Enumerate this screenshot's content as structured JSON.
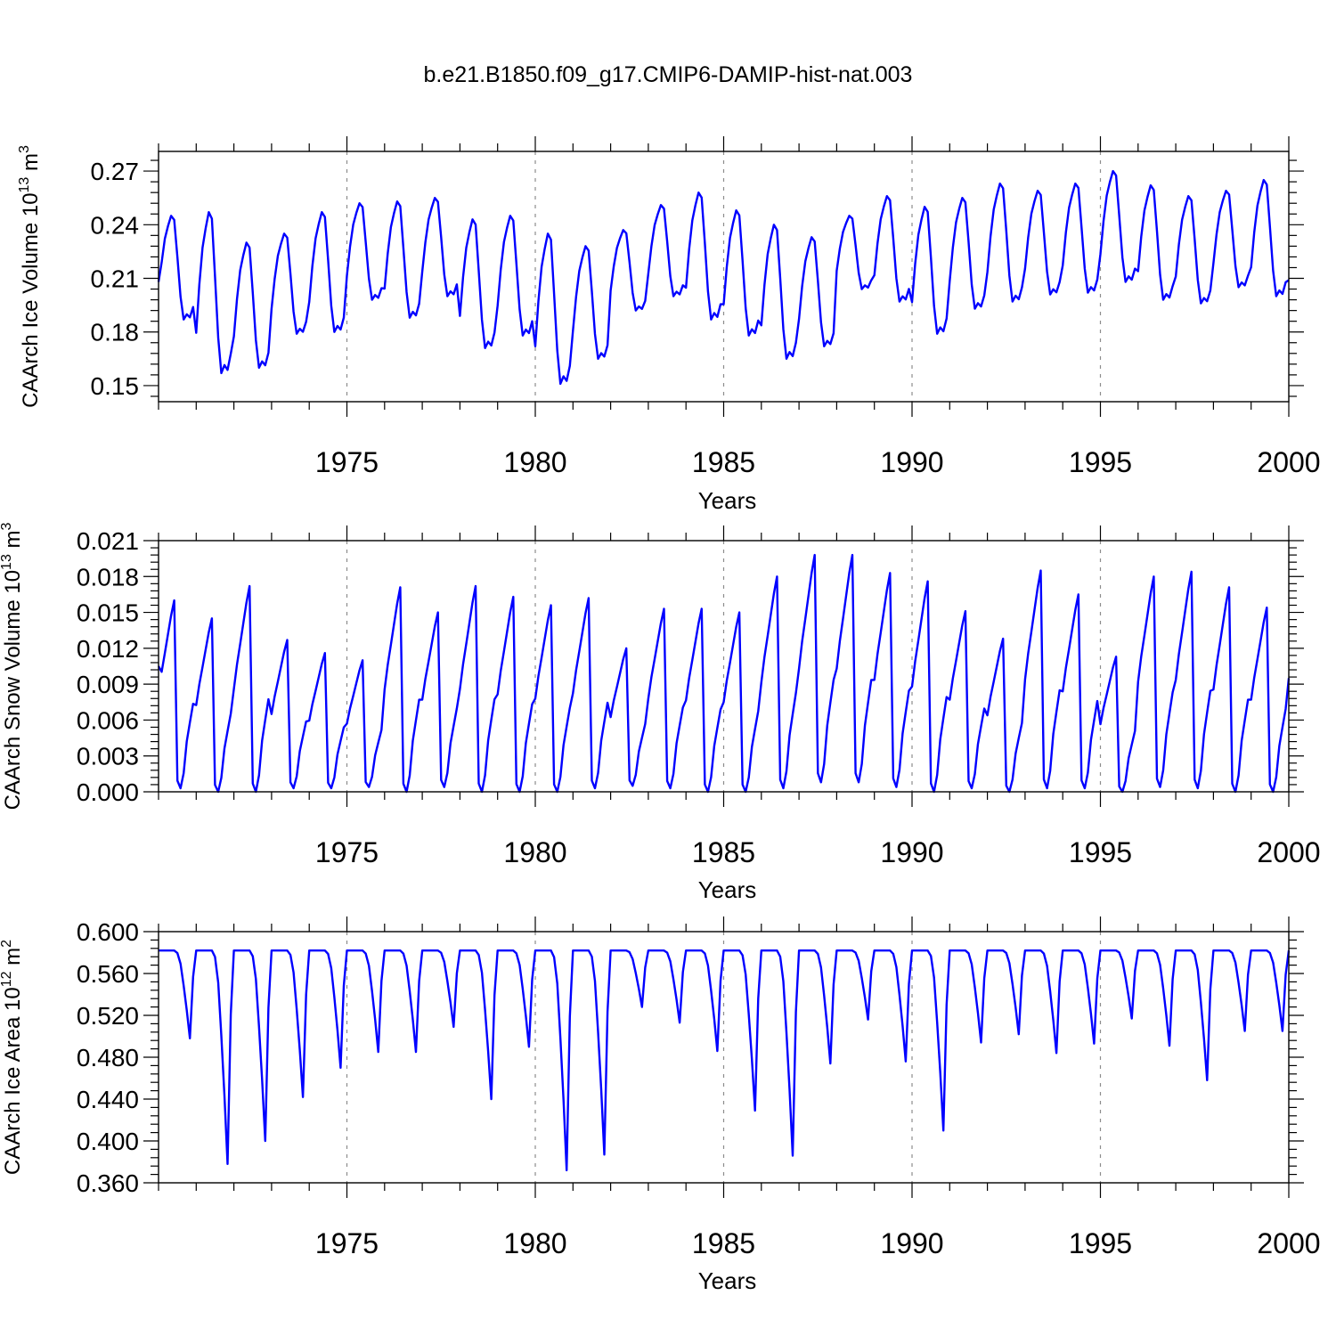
{
  "title": "b.e21.B1850.f09_g17.CMIP6-DAMIP-hist-nat.003",
  "colors": {
    "line": "#0000ff",
    "axis": "#000000",
    "grid": "#8c8c8c"
  },
  "chart_data": [
    {
      "type": "line",
      "ylabel_main": "CAArch Ice Volume 10",
      "ylabel_exp": "13",
      "ylabel_unit": " m",
      "ylabel_unit_exp": "3",
      "xlabel": "Years",
      "xlim": [
        1970,
        2000
      ],
      "ylim": [
        0.141,
        0.281
      ],
      "yticks": [
        0.15,
        0.18,
        0.21,
        0.24,
        0.27
      ],
      "ytick_labels": [
        "0.15",
        "0.18",
        "0.21",
        "0.24",
        "0.27"
      ],
      "xticks": [
        1975,
        1980,
        1985,
        1990,
        1995,
        2000
      ],
      "xtick_labels": [
        "1975",
        "1980",
        "1985",
        "1990",
        "1995",
        "2000"
      ],
      "grid_x": [
        1975,
        1980,
        1985,
        1990,
        1995
      ],
      "annual_max": [
        0.245,
        0.247,
        0.23,
        0.235,
        0.247,
        0.252,
        0.253,
        0.255,
        0.243,
        0.245,
        0.235,
        0.228,
        0.237,
        0.251,
        0.258,
        0.248,
        0.24,
        0.233,
        0.245,
        0.256,
        0.25,
        0.255,
        0.263,
        0.259,
        0.263,
        0.27,
        0.262,
        0.256,
        0.259,
        0.265
      ],
      "annual_min": [
        0.187,
        0.157,
        0.16,
        0.179,
        0.18,
        0.198,
        0.188,
        0.2,
        0.171,
        0.178,
        0.151,
        0.165,
        0.192,
        0.2,
        0.187,
        0.178,
        0.165,
        0.172,
        0.204,
        0.197,
        0.179,
        0.193,
        0.197,
        0.201,
        0.202,
        0.208,
        0.198,
        0.196,
        0.205,
        0.2
      ],
      "start_value": 0.208,
      "end_value": 0.209,
      "profile": [
        0.25,
        0.55,
        0.78,
        0.9,
        1.0,
        0.96,
        0.6,
        0.22,
        0.0,
        0.05,
        0.02,
        0.12
      ],
      "series": [
        {
          "name": "CAArch Ice Volume",
          "values": []
        }
      ]
    },
    {
      "type": "line",
      "ylabel_main": "CAArch Snow Volume 10",
      "ylabel_exp": "13",
      "ylabel_unit": " m",
      "ylabel_unit_exp": "3",
      "xlabel": "Years",
      "xlim": [
        1970,
        2000
      ],
      "ylim": [
        0.0,
        0.021
      ],
      "yticks": [
        0.0,
        0.003,
        0.006,
        0.009,
        0.012,
        0.015,
        0.018,
        0.021
      ],
      "ytick_labels": [
        "0.000",
        "0.003",
        "0.006",
        "0.009",
        "0.012",
        "0.015",
        "0.018",
        "0.021"
      ],
      "xticks": [
        1975,
        1980,
        1985,
        1990,
        1995,
        2000
      ],
      "xtick_labels": [
        "1975",
        "1980",
        "1985",
        "1990",
        "1995",
        "2000"
      ],
      "grid_x": [
        1975,
        1980,
        1985,
        1990,
        1995
      ],
      "annual_max": [
        0.016,
        0.0145,
        0.0172,
        0.0127,
        0.0116,
        0.011,
        0.0171,
        0.015,
        0.0172,
        0.0163,
        0.0156,
        0.0162,
        0.012,
        0.0153,
        0.0153,
        0.015,
        0.018,
        0.0198,
        0.0198,
        0.0183,
        0.0176,
        0.0151,
        0.0128,
        0.0185,
        0.0165,
        0.0113,
        0.018,
        0.0184,
        0.0171,
        0.0154
      ],
      "annual_min": [
        0.0003,
        0.0,
        0.0,
        0.0003,
        0.0003,
        0.0004,
        0.0,
        0.0004,
        0.0,
        0.0,
        0.0,
        0.0003,
        0.0005,
        0.0003,
        0.0,
        0.0,
        0.0003,
        0.0008,
        0.0008,
        0.0004,
        0.0,
        0.0003,
        0.0,
        0.0003,
        0.0003,
        0.0,
        0.0004,
        0.0003,
        0.0,
        0.0
      ],
      "start_value": 0.0105,
      "end_value": 0.0095,
      "profile": [
        0.5,
        0.62,
        0.72,
        0.82,
        0.92,
        1.0,
        0.04,
        0.0,
        0.08,
        0.25,
        0.35,
        0.45
      ],
      "series": [
        {
          "name": "CAArch Snow Volume",
          "values": []
        }
      ]
    },
    {
      "type": "line",
      "ylabel_main": "CAArch Ice Area 10",
      "ylabel_exp": "12",
      "ylabel_unit": " m",
      "ylabel_unit_exp": "2",
      "xlabel": "Years",
      "xlim": [
        1970,
        2000
      ],
      "ylim": [
        0.36,
        0.6
      ],
      "yticks": [
        0.36,
        0.4,
        0.44,
        0.48,
        0.52,
        0.56,
        0.6
      ],
      "ytick_labels": [
        "0.360",
        "0.400",
        "0.440",
        "0.480",
        "0.520",
        "0.560",
        "0.600"
      ],
      "xticks": [
        1975,
        1980,
        1985,
        1990,
        1995,
        2000
      ],
      "xtick_labels": [
        "1975",
        "1980",
        "1985",
        "1990",
        "1995",
        "2000"
      ],
      "grid_x": [
        1975,
        1980,
        1985,
        1990,
        1995
      ],
      "annual_max": [
        0.582,
        0.582,
        0.582,
        0.582,
        0.582,
        0.582,
        0.582,
        0.582,
        0.582,
        0.582,
        0.582,
        0.582,
        0.582,
        0.582,
        0.582,
        0.582,
        0.582,
        0.582,
        0.582,
        0.582,
        0.582,
        0.582,
        0.582,
        0.582,
        0.582,
        0.582,
        0.582,
        0.582,
        0.582,
        0.582
      ],
      "annual_min": [
        0.498,
        0.378,
        0.4,
        0.442,
        0.47,
        0.485,
        0.485,
        0.509,
        0.44,
        0.49,
        0.372,
        0.387,
        0.528,
        0.513,
        0.486,
        0.429,
        0.386,
        0.474,
        0.516,
        0.476,
        0.41,
        0.494,
        0.502,
        0.484,
        0.493,
        0.517,
        0.491,
        0.458,
        0.505,
        0.505
      ],
      "start_value": 0.582,
      "end_value": 0.582,
      "profile": [
        1.0,
        1.0,
        1.0,
        1.0,
        1.0,
        1.0,
        0.97,
        0.85,
        0.6,
        0.32,
        0.0,
        0.7
      ],
      "series": [
        {
          "name": "CAArch Ice Area",
          "values": []
        }
      ]
    }
  ]
}
